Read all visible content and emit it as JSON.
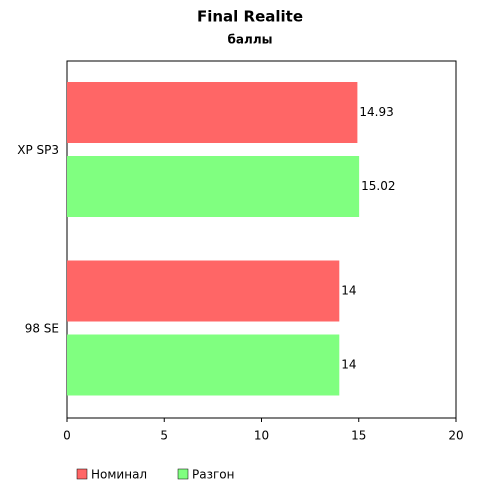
{
  "chart_data": {
    "type": "hbar",
    "title": "Final Realite",
    "subtitle": "баллы",
    "categories": [
      "XP SP3",
      "98 SE"
    ],
    "series": [
      {
        "name": "Номинал",
        "color": "#ff6666",
        "values": [
          14.93,
          14
        ]
      },
      {
        "name": "Разгон",
        "color": "#80ff80",
        "values": [
          15.02,
          14
        ]
      }
    ],
    "xlim": [
      0,
      20
    ],
    "xticks": [
      0,
      5,
      10,
      15,
      20
    ],
    "legend": "bottom"
  }
}
